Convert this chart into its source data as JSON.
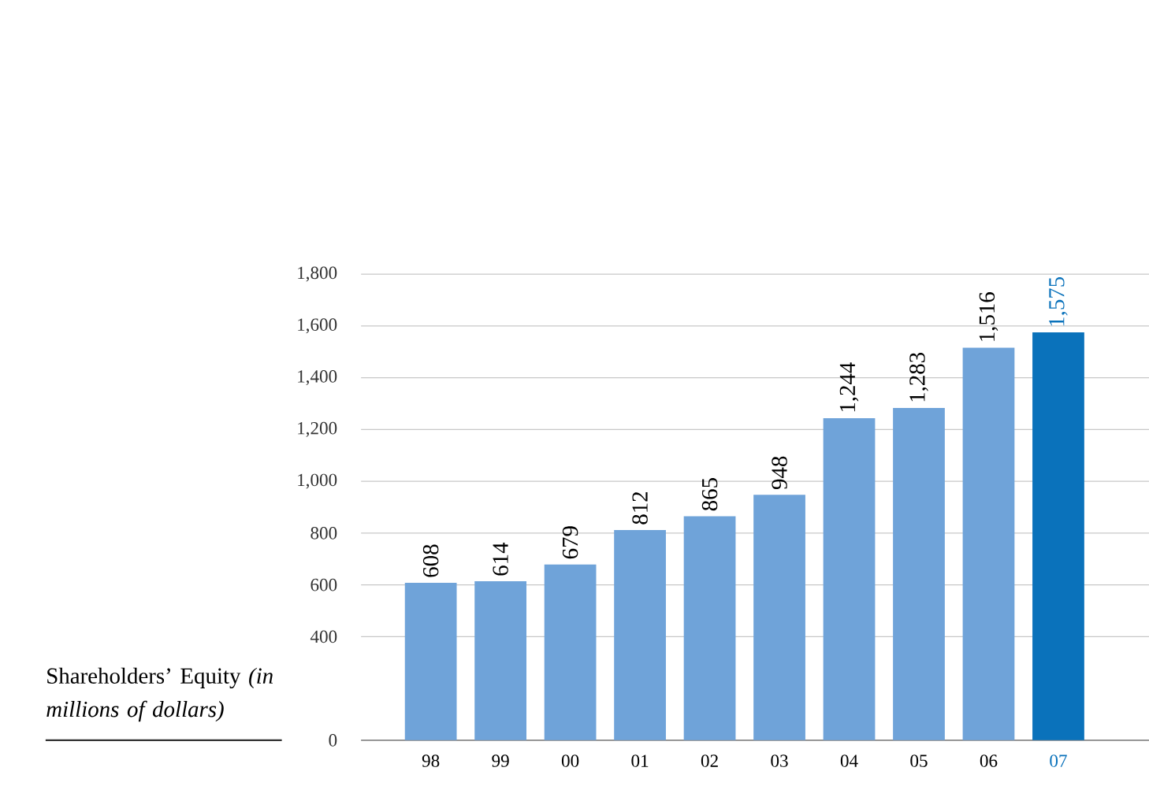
{
  "chart_data": {
    "type": "bar",
    "ylabel": "Shareholders’ Equity *(in millions of dollars)*",
    "categories": [
      "98",
      "99",
      "00",
      "01",
      "02",
      "03",
      "04",
      "05",
      "06",
      "07"
    ],
    "values": [
      608,
      614,
      679,
      812,
      865,
      948,
      1244,
      1283,
      1516,
      1575
    ],
    "value_labels": [
      "608",
      "614",
      "679",
      "812",
      "865",
      "948",
      "1,244",
      "1,283",
      "1,516",
      "1,575"
    ],
    "colors": [
      "#6fa3d9",
      "#6fa3d9",
      "#6fa3d9",
      "#6fa3d9",
      "#6fa3d9",
      "#6fa3d9",
      "#6fa3d9",
      "#6fa3d9",
      "#6fa3d9",
      "#0a72bb"
    ],
    "ylim": [
      0,
      1800
    ],
    "yticks": [
      0,
      {
        "value": 400,
        "label": "400"
      },
      {
        "value": 600,
        "label": "600"
      },
      {
        "value": 800,
        "label": "800"
      },
      {
        "value": 1000,
        "label": "1,000"
      },
      {
        "value": 1200,
        "label": "1,200"
      },
      {
        "value": 1400,
        "label": "1,400"
      },
      {
        "value": 1600,
        "label": "1,600"
      },
      {
        "value": 1800,
        "label": "1,800"
      }
    ],
    "grid": "y"
  }
}
